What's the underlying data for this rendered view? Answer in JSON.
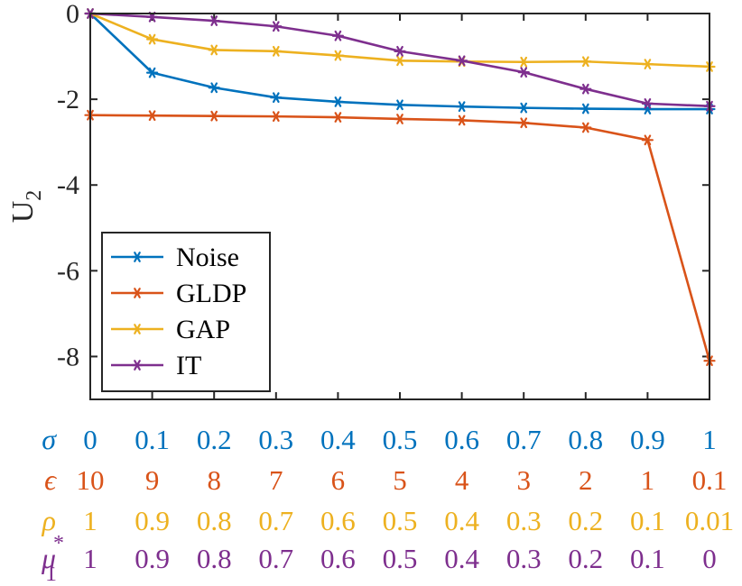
{
  "chart_data": {
    "type": "line",
    "title": "",
    "xlabel": "",
    "ylabel": "U",
    "ylabel_subscript": "2",
    "ylim": [
      -9,
      0
    ],
    "yticks": [
      0,
      -2,
      -4,
      -6,
      -8
    ],
    "ytick_labels": [
      "0",
      "-2",
      "-4",
      "-6",
      "-8"
    ],
    "x": [
      0,
      1,
      2,
      3,
      4,
      5,
      6,
      7,
      8,
      9,
      10
    ],
    "xlim": [
      0,
      10
    ],
    "grid": false,
    "legend_position": "bottom-left",
    "series": [
      {
        "name": "Noise",
        "color": "#0072BD",
        "values": [
          0,
          -1.38,
          -1.73,
          -1.96,
          -2.06,
          -2.13,
          -2.17,
          -2.2,
          -2.22,
          -2.23,
          -2.23
        ]
      },
      {
        "name": "GLDP",
        "color": "#D95319",
        "values": [
          -2.37,
          -2.38,
          -2.39,
          -2.4,
          -2.42,
          -2.46,
          -2.49,
          -2.55,
          -2.66,
          -2.95,
          -8.1
        ]
      },
      {
        "name": "GAP",
        "color": "#EDB120",
        "values": [
          0,
          -0.6,
          -0.85,
          -0.88,
          -0.98,
          -1.1,
          -1.12,
          -1.13,
          -1.12,
          -1.18,
          -1.24
        ]
      },
      {
        "name": "IT",
        "color": "#7E2F8E",
        "values": [
          0,
          -0.08,
          -0.17,
          -0.3,
          -0.52,
          -0.88,
          -1.1,
          -1.37,
          -1.76,
          -2.1,
          -2.16
        ]
      }
    ],
    "parameter_rows": [
      {
        "symbol": "σ",
        "subscript": "",
        "superscript": "",
        "color": "#0072BD",
        "labels": [
          "0",
          "0.1",
          "0.2",
          "0.3",
          "0.4",
          "0.5",
          "0.6",
          "0.7",
          "0.8",
          "0.9",
          "1"
        ]
      },
      {
        "symbol": "ϵ",
        "subscript": "",
        "superscript": "",
        "color": "#D95319",
        "labels": [
          "10",
          "9",
          "8",
          "7",
          "6",
          "5",
          "4",
          "3",
          "2",
          "1",
          "0.1"
        ]
      },
      {
        "symbol": "ρ",
        "subscript": "",
        "superscript": "",
        "color": "#EDB120",
        "labels": [
          "1",
          "0.9",
          "0.8",
          "0.7",
          "0.6",
          "0.5",
          "0.4",
          "0.3",
          "0.2",
          "0.1",
          "0.01"
        ]
      },
      {
        "symbol": "μ",
        "subscript": "1",
        "superscript": "*",
        "color": "#7E2F8E",
        "labels": [
          "1",
          "0.9",
          "0.8",
          "0.7",
          "0.6",
          "0.5",
          "0.4",
          "0.3",
          "0.2",
          "0.1",
          "0"
        ]
      }
    ]
  }
}
